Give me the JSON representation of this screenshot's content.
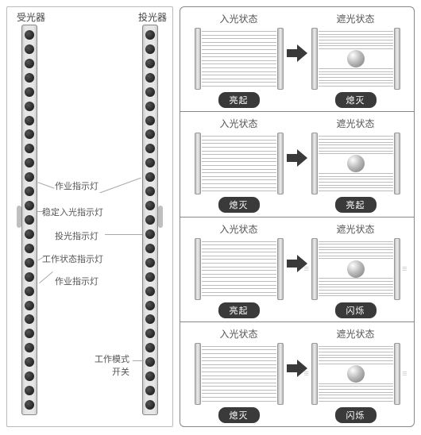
{
  "left": {
    "receiver_label": "受光器",
    "emitter_label": "投光器",
    "callouts": {
      "work_top": "作业指示灯",
      "stable": "稳定入光指示灯",
      "emit": "投光指示灯",
      "status": "工作状态指示灯",
      "work_bot": "作业指示灯",
      "mode_switch": "工作模式\n开关"
    },
    "cells": 27,
    "colors": {
      "bar_border": "#888",
      "lead": "#aaa",
      "text": "#555"
    }
  },
  "right": {
    "state_in": "入光状态",
    "state_blocked": "遮光状态",
    "rows": [
      {
        "left_pill": "亮起",
        "right_pill": "熄灭",
        "blocked": true,
        "flash": false
      },
      {
        "left_pill": "熄灭",
        "right_pill": "亮起",
        "blocked": true,
        "flash": false
      },
      {
        "left_pill": "亮起",
        "right_pill": "闪烁",
        "blocked": true,
        "flash": true
      },
      {
        "left_pill": "熄灭",
        "right_pill": "闪烁",
        "blocked": true,
        "flash": true
      }
    ],
    "beams_per_curtain": 16,
    "colors": {
      "pill_bg": "#3a3a3a",
      "pill_fg": "#ffffff",
      "arrow": "#3a3a3a",
      "beam": "#bdbdbd",
      "title": "#555"
    }
  }
}
